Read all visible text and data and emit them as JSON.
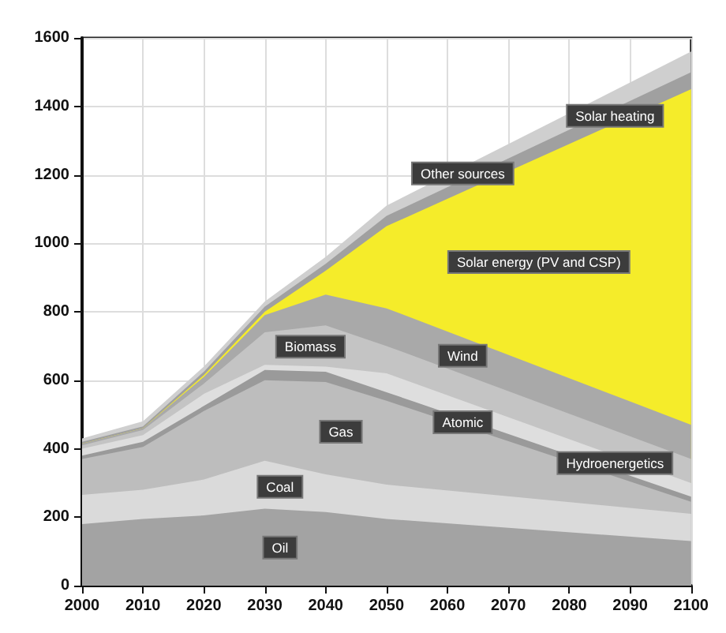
{
  "chart_data": {
    "type": "area",
    "stacked": true,
    "x": [
      2000,
      2010,
      2020,
      2030,
      2040,
      2050,
      2100
    ],
    "series": [
      {
        "name": "Oil",
        "color": "#a3a3a3",
        "values": [
          180,
          195,
          205,
          225,
          215,
          195,
          130
        ]
      },
      {
        "name": "Coal",
        "color": "#dadada",
        "values": [
          85,
          85,
          105,
          140,
          110,
          100,
          80
        ]
      },
      {
        "name": "Gas",
        "color": "#bdbdbd",
        "values": [
          105,
          125,
          200,
          235,
          270,
          245,
          35
        ]
      },
      {
        "name": "Atomic",
        "color": "#9a9a9a",
        "values": [
          10,
          15,
          15,
          30,
          30,
          25,
          15
        ]
      },
      {
        "name": "Hydroenergetics",
        "color": "#dedede",
        "values": [
          20,
          20,
          35,
          15,
          15,
          55,
          40
        ]
      },
      {
        "name": "Biomass",
        "color": "#c4c4c4",
        "values": [
          10,
          15,
          30,
          95,
          120,
          80,
          70
        ]
      },
      {
        "name": "Wind",
        "color": "#a9a9a9",
        "values": [
          5,
          5,
          20,
          50,
          90,
          110,
          100
        ]
      },
      {
        "name": "Solar energy (PV and CSP)",
        "color": "#f5ec2a",
        "values": [
          0,
          0,
          5,
          10,
          70,
          240,
          980
        ]
      },
      {
        "name": "Solar heating",
        "color": "#a0a0a0",
        "values": [
          5,
          5,
          10,
          15,
          20,
          30,
          50
        ]
      },
      {
        "name": "Other sources",
        "color": "#cfcfcf",
        "values": [
          10,
          15,
          15,
          15,
          20,
          30,
          60
        ]
      }
    ],
    "xlim": [
      2000,
      2100
    ],
    "xticks": [
      2000,
      2010,
      2020,
      2030,
      2040,
      2050,
      2060,
      2070,
      2080,
      2090,
      2100
    ],
    "ylim": [
      0,
      1600
    ],
    "yticks": [
      0,
      200,
      400,
      600,
      800,
      1000,
      1200,
      1400,
      1600
    ],
    "grid": true
  }
}
